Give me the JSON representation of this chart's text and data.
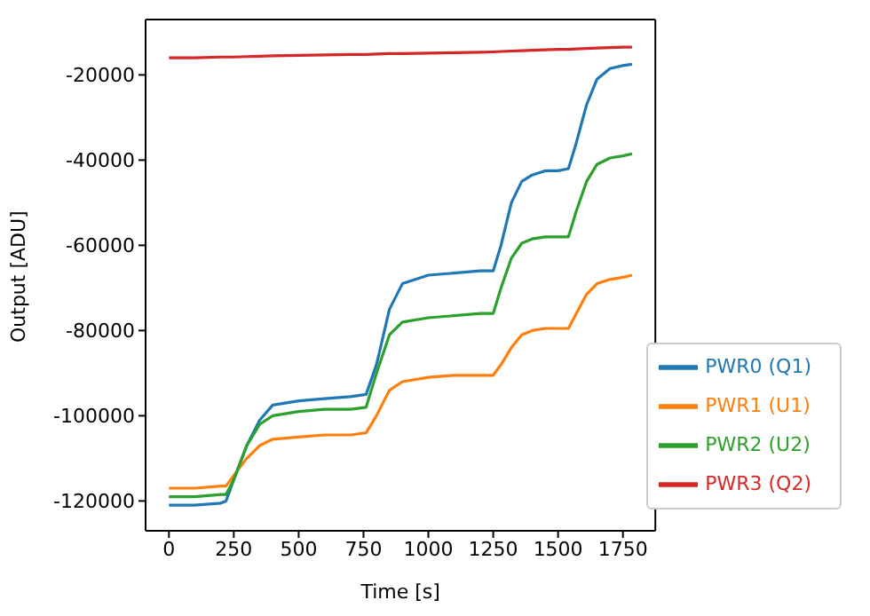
{
  "chart_data": {
    "type": "line",
    "xlabel": "Time [s]",
    "ylabel": "Output [ADU]",
    "x": [
      0,
      100,
      200,
      220,
      250,
      300,
      350,
      400,
      500,
      600,
      700,
      760,
      800,
      850,
      900,
      1000,
      1100,
      1200,
      1250,
      1280,
      1320,
      1360,
      1400,
      1450,
      1500,
      1540,
      1570,
      1610,
      1650,
      1700,
      1750,
      1785
    ],
    "series": [
      {
        "name": "PWR0 (Q1)",
        "color": "#1f77b4",
        "values": [
          -121000,
          -121000,
          -120500,
          -120000,
          -115000,
          -107000,
          -101000,
          -97500,
          -96500,
          -96000,
          -95500,
          -95000,
          -88000,
          -75000,
          -69000,
          -67000,
          -66500,
          -66000,
          -66000,
          -60000,
          -50000,
          -45000,
          -43500,
          -42500,
          -42500,
          -42000,
          -36000,
          -27000,
          -21000,
          -18500,
          -17800,
          -17500
        ]
      },
      {
        "name": "PWR1 (U1)",
        "color": "#ff7f0e",
        "values": [
          -117000,
          -117000,
          -116500,
          -116500,
          -114000,
          -110000,
          -107000,
          -105500,
          -105000,
          -104500,
          -104500,
          -104000,
          -100000,
          -94000,
          -92000,
          -91000,
          -90500,
          -90500,
          -90500,
          -88000,
          -84000,
          -81000,
          -80000,
          -79500,
          -79500,
          -79500,
          -76000,
          -71500,
          -69000,
          -68000,
          -67500,
          -67000
        ]
      },
      {
        "name": "PWR2 (U2)",
        "color": "#2ca02c",
        "values": [
          -119000,
          -119000,
          -118500,
          -118500,
          -115000,
          -107000,
          -102000,
          -100000,
          -99000,
          -98500,
          -98500,
          -98000,
          -90000,
          -81000,
          -78000,
          -77000,
          -76500,
          -76000,
          -76000,
          -70000,
          -63000,
          -59500,
          -58500,
          -58000,
          -58000,
          -58000,
          -52000,
          -45000,
          -41000,
          -39500,
          -39000,
          -38500
        ]
      },
      {
        "name": "PWR3 (Q2)",
        "color": "#d62728",
        "values": [
          -16000,
          -16000,
          -15800,
          -15800,
          -15800,
          -15700,
          -15600,
          -15500,
          -15400,
          -15300,
          -15200,
          -15200,
          -15100,
          -15000,
          -15000,
          -14900,
          -14800,
          -14700,
          -14600,
          -14500,
          -14400,
          -14300,
          -14200,
          -14100,
          -14000,
          -14000,
          -13900,
          -13800,
          -13700,
          -13600,
          -13500,
          -13500
        ]
      }
    ],
    "xlim": [
      -90,
      1875
    ],
    "xticks": [
      0,
      250,
      500,
      750,
      1000,
      1250,
      1500,
      1750
    ],
    "ylim": [
      -127000,
      -7000
    ],
    "yticks": [
      -120000,
      -100000,
      -80000,
      -60000,
      -40000,
      -20000
    ],
    "grid": false,
    "legend": "bottom right",
    "marker": "none",
    "line_style": "solid"
  }
}
